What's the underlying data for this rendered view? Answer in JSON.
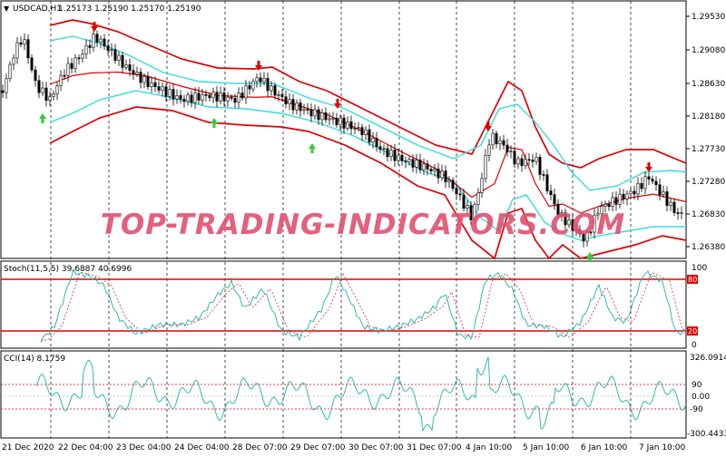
{
  "symbol_header": {
    "arrow": "▼",
    "symbol_tf": "USDCAD,H1",
    "ohlc": "1.25173 1.25190 1.25170 1.25190"
  },
  "watermark": "TOP-TRADING-INDICATORS.COM",
  "main_panel": {
    "price_labels": [
      "1.29530",
      "1.29080",
      "1.28630",
      "1.28180",
      "1.27730",
      "1.27280",
      "1.26830",
      "1.26380"
    ]
  },
  "stoch_panel": {
    "header": "Stoch(11,5,5) 39.6887 40.6996",
    "scale_labels": [
      "100",
      "80",
      "20",
      "0"
    ],
    "level_marks": [
      "80",
      "20"
    ]
  },
  "cci_panel": {
    "header": "CCI(14) 8.1759",
    "scale_labels": [
      "326.0914",
      "90",
      "0.00",
      "-90",
      "-300.4433"
    ]
  },
  "time_axis": {
    "labels": [
      "21 Dec 2020",
      "22 Dec 04:00",
      "23 Dec 04:00",
      "24 Dec 04:00",
      "28 Dec 07:00",
      "29 Dec 07:00",
      "30 Dec 07:00",
      "31 Dec 07:00",
      "4 Jan 10:00",
      "5 Jan 10:00",
      "6 Jan 10:00",
      "7 Jan 10:00"
    ]
  },
  "colors": {
    "bollinger": "#e00000",
    "inner_band": "#33dddd",
    "stoch_main": "#20b2aa",
    "stoch_signal": "#e04040",
    "cci": "#20b2aa",
    "level_line": "#e00000",
    "candle": "#000000",
    "buy_arrow": "#33cc33",
    "sell_arrow": "#e00000",
    "watermark": "#e0506e"
  }
}
